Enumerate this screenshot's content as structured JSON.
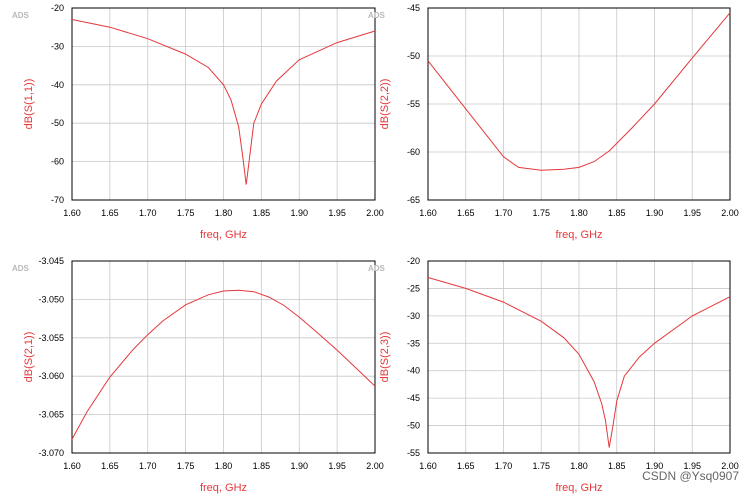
{
  "watermark": "CSDN @Ysq0907",
  "chart_data": [
    {
      "type": "line",
      "logo": "ADS",
      "xlabel": "freq, GHz",
      "ylabel": "dB(S(1,1))",
      "xlim": [
        1.6,
        2.0
      ],
      "ylim": [
        -70,
        -20
      ],
      "grid": true,
      "xticks": [
        "1.60",
        "1.65",
        "1.70",
        "1.75",
        "1.80",
        "1.85",
        "1.90",
        "1.95",
        "2.00"
      ],
      "yticks": [
        "-20",
        "-30",
        "-40",
        "-50",
        "-60",
        "-70"
      ],
      "x": [
        1.6,
        1.65,
        1.7,
        1.75,
        1.78,
        1.8,
        1.81,
        1.82,
        1.825,
        1.83,
        1.835,
        1.84,
        1.85,
        1.87,
        1.9,
        1.95,
        2.0
      ],
      "y": [
        -23,
        -25,
        -28,
        -32,
        -35.5,
        -40,
        -44,
        -51,
        -58,
        -66,
        -58,
        -50,
        -45,
        -39,
        -33.5,
        -29,
        -26
      ]
    },
    {
      "type": "line",
      "logo": "ADS",
      "xlabel": "freq, GHz",
      "ylabel": "dB(S(2,2))",
      "xlim": [
        1.6,
        2.0
      ],
      "ylim": [
        -65,
        -45
      ],
      "grid": true,
      "xticks": [
        "1.60",
        "1.65",
        "1.70",
        "1.75",
        "1.80",
        "1.85",
        "1.90",
        "1.95",
        "2.00"
      ],
      "yticks": [
        "-45",
        "-50",
        "-55",
        "-60",
        "-65"
      ],
      "x": [
        1.6,
        1.63,
        1.65,
        1.68,
        1.7,
        1.72,
        1.75,
        1.78,
        1.8,
        1.82,
        1.84,
        1.87,
        1.9,
        1.95,
        2.0
      ],
      "y": [
        -50.5,
        -53.5,
        -55.5,
        -58.5,
        -60.5,
        -61.6,
        -61.9,
        -61.8,
        -61.6,
        -61.0,
        -59.9,
        -57.5,
        -55,
        -50.2,
        -45.5
      ]
    },
    {
      "type": "line",
      "logo": "ADS",
      "xlabel": "freq, GHz",
      "ylabel": "dB(S(2,1))",
      "xlim": [
        1.6,
        2.0
      ],
      "ylim": [
        -3.07,
        -3.045
      ],
      "grid": true,
      "xticks": [
        "1.60",
        "1.65",
        "1.70",
        "1.75",
        "1.80",
        "1.85",
        "1.90",
        "1.95",
        "2.00"
      ],
      "yticks": [
        "-3.045",
        "-3.050",
        "-3.055",
        "-3.060",
        "-3.065",
        "-3.070"
      ],
      "x": [
        1.6,
        1.62,
        1.65,
        1.68,
        1.7,
        1.72,
        1.75,
        1.78,
        1.8,
        1.82,
        1.84,
        1.86,
        1.88,
        1.9,
        1.92,
        1.95,
        1.98,
        2.0
      ],
      "y": [
        -3.0682,
        -3.0646,
        -3.0601,
        -3.0566,
        -3.0546,
        -3.0528,
        -3.0507,
        -3.0494,
        -3.0489,
        -3.0488,
        -3.049,
        -3.0497,
        -3.0508,
        -3.0523,
        -3.054,
        -3.0566,
        -3.0594,
        -3.0613
      ]
    },
    {
      "type": "line",
      "logo": "ADS",
      "xlabel": "freq, GHz",
      "ylabel": "dB(S(2,3))",
      "xlim": [
        1.6,
        2.0
      ],
      "ylim": [
        -55,
        -20
      ],
      "grid": true,
      "xticks": [
        "1.60",
        "1.65",
        "1.70",
        "1.75",
        "1.80",
        "1.85",
        "1.90",
        "1.95",
        "2.00"
      ],
      "yticks": [
        "-20",
        "-25",
        "-30",
        "-35",
        "-40",
        "-45",
        "-50",
        "-55"
      ],
      "x": [
        1.6,
        1.65,
        1.7,
        1.75,
        1.78,
        1.8,
        1.82,
        1.83,
        1.835,
        1.84,
        1.845,
        1.85,
        1.86,
        1.88,
        1.9,
        1.95,
        2.0
      ],
      "y": [
        -23,
        -25,
        -27.5,
        -31,
        -34,
        -37,
        -42,
        -46,
        -49,
        -54,
        -50,
        -45.5,
        -41,
        -37.5,
        -35,
        -30,
        -26.5
      ]
    }
  ]
}
